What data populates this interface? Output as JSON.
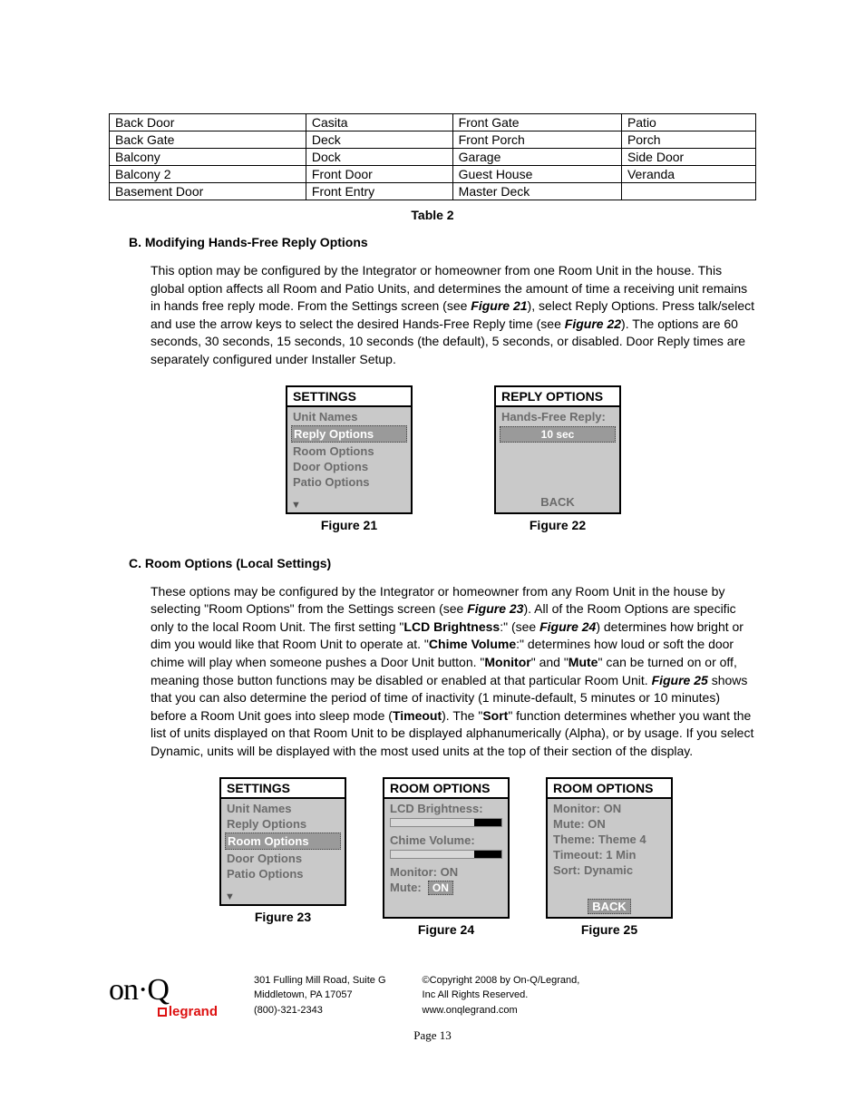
{
  "table2": {
    "rows": [
      [
        "Back Door",
        "Casita",
        "Front Gate",
        "Patio"
      ],
      [
        "Back Gate",
        "Deck",
        "Front Porch",
        "Porch"
      ],
      [
        "Balcony",
        "Dock",
        "Garage",
        "Side Door"
      ],
      [
        "Balcony 2",
        "Front Door",
        "Guest House",
        "Veranda"
      ],
      [
        "Basement Door",
        "Front Entry",
        "Master Deck",
        ""
      ]
    ],
    "caption": "Table 2"
  },
  "sectionB": {
    "heading": "B.   Modifying Hands-Free Reply Options",
    "paragraph_parts": [
      {
        "t": "This option may be configured by the Integrator or homeowner from one Room Unit in the house.  This global option affects all Room and Patio Units, and determines the amount of time a receiving unit remains in hands free reply mode. From the Settings screen (see "
      },
      {
        "t": "Figure 21",
        "b": true,
        "i": true
      },
      {
        "t": "), select Reply Options. Press talk/select and use the arrow keys to select the desired Hands-Free Reply time (see "
      },
      {
        "t": "Figure 22",
        "b": true,
        "i": true
      },
      {
        "t": "). The options are 60 seconds, 30 seconds, 15 seconds, 10 seconds (the default), 5 seconds, or disabled. Door Reply times are separately configured under Installer Setup."
      }
    ]
  },
  "fig21": {
    "title": "SETTINGS",
    "items": [
      "Unit Names",
      "Reply Options",
      "Room Options",
      "Door Options",
      "Patio Options"
    ],
    "highlight_index": 1,
    "caption": "Figure 21"
  },
  "fig22": {
    "title": "REPLY OPTIONS",
    "label": "Hands-Free Reply:",
    "value": "10 sec",
    "back": "BACK",
    "caption": "Figure 22"
  },
  "sectionC": {
    "heading": "C.   Room Options (Local Settings)",
    "paragraph_parts": [
      {
        "t": "These options may be configured by the Integrator or homeowner from any Room Unit in the house by selecting \"Room Options\" from the Settings screen (see "
      },
      {
        "t": "Figure 23",
        "b": true,
        "i": true
      },
      {
        "t": "). All of the Room Options are specific only to the local Room Unit. The first setting \""
      },
      {
        "t": "LCD Brightness",
        "b": true
      },
      {
        "t": ":\" (see "
      },
      {
        "t": "Figure 24",
        "b": true,
        "i": true
      },
      {
        "t": ") determines how bright or dim you would like that Room Unit to operate at. \""
      },
      {
        "t": "Chime Volume",
        "b": true
      },
      {
        "t": ":\" determines how loud or soft the door chime will play when someone pushes a Door Unit button. \""
      },
      {
        "t": "Monitor",
        "b": true
      },
      {
        "t": "\" and \""
      },
      {
        "t": "Mute",
        "b": true
      },
      {
        "t": "\" can be turned on or off, meaning those button functions may be disabled or enabled at that particular Room Unit. "
      },
      {
        "t": "Figure 25",
        "b": true,
        "i": true
      },
      {
        "t": " shows that you can also determine the period of time of inactivity (1 minute-default, 5 minutes or 10 minutes) before a Room Unit goes into sleep mode ("
      },
      {
        "t": "Timeout",
        "b": true
      },
      {
        "t": "). The \""
      },
      {
        "t": "Sort",
        "b": true
      },
      {
        "t": "\" function determines whether you want the list of units displayed on that Room Unit to be displayed alphanumerically (Alpha), or by usage. If you select Dynamic, units will be displayed with the most used units at the top of their section of the display."
      }
    ]
  },
  "fig23": {
    "title": "SETTINGS",
    "items": [
      "Unit Names",
      "Reply Options",
      "Room Options",
      "Door Options",
      "Patio Options"
    ],
    "highlight_index": 2,
    "caption": "Figure 23"
  },
  "fig24": {
    "title": "ROOM OPTIONS",
    "line1": "LCD Brightness:",
    "slider1_fill_pct": 25,
    "line2": "Chime Volume:",
    "slider2_fill_pct": 25,
    "line3": "Monitor: ON",
    "mute_label": "Mute:",
    "mute_value": "ON",
    "caption": "Figure 24"
  },
  "fig25": {
    "title": "ROOM OPTIONS",
    "lines": [
      "Monitor: ON",
      "Mute:   ON",
      "Theme:  Theme 4",
      "Timeout:   1 Min",
      "Sort:   Dynamic"
    ],
    "back": "BACK",
    "caption": "Figure 25"
  },
  "footer": {
    "logo_top": "on·Q",
    "logo_bottom": "legrand",
    "addr": [
      "301 Fulling Mill Road, Suite G",
      "Middletown, PA   17057",
      "(800)-321-2343"
    ],
    "legal": [
      "©Copyright 2008 by On-Q/Legrand,",
      "Inc All Rights Reserved.",
      "www.onqlegrand.com"
    ],
    "page": "Page 13"
  }
}
